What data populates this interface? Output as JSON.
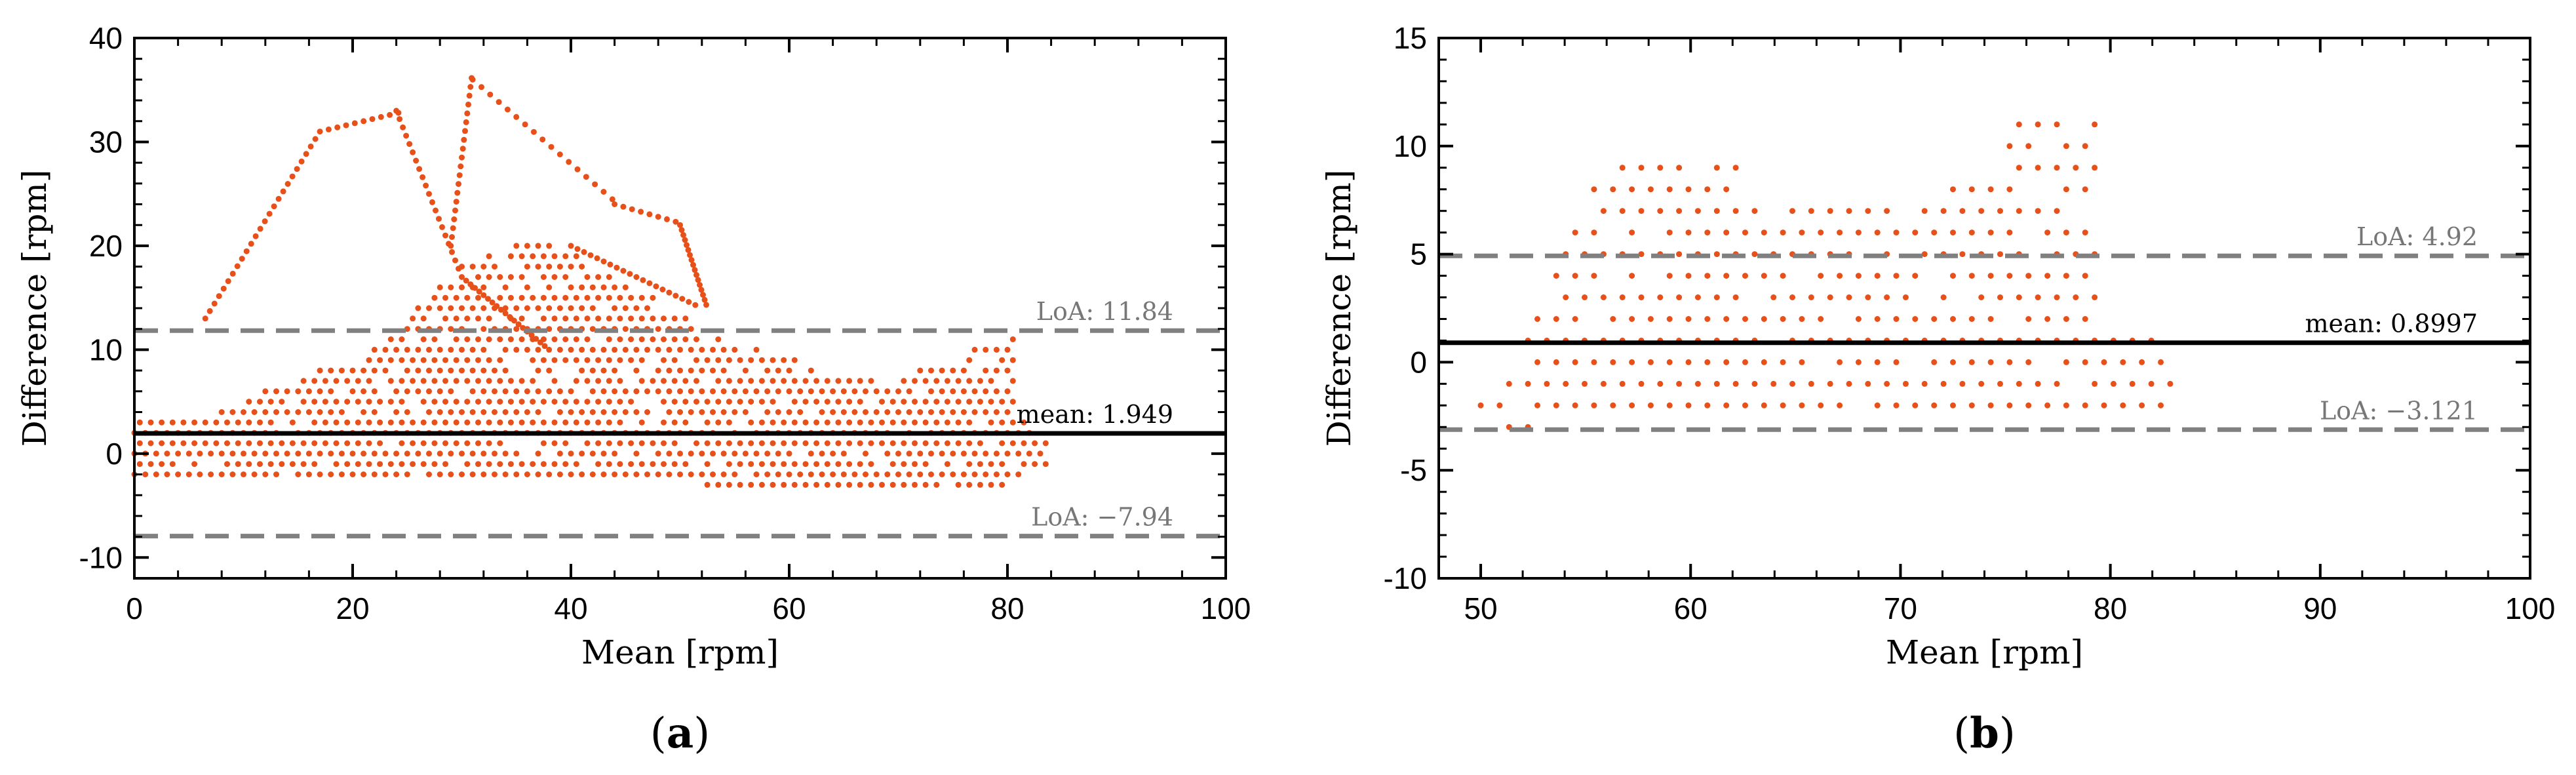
{
  "colors": {
    "points": "#e8501a",
    "mean_line": "#000000",
    "loa_line": "#808080",
    "loa_text": "#777777",
    "frame": "#000000"
  },
  "chart_data": [
    {
      "type": "scatter",
      "panel_label": "(a)",
      "panel_letter": "a",
      "xlabel": "Mean [rpm]",
      "ylabel": "Difference [rpm]",
      "xlim": [
        0,
        100
      ],
      "ylim": [
        -12,
        40
      ],
      "xticks": [
        0,
        20,
        40,
        60,
        80,
        100
      ],
      "yticks": [
        -10,
        0,
        10,
        20,
        30,
        40
      ],
      "ytick_labels": [
        "-10",
        "0",
        "10",
        "20",
        "30",
        "40"
      ],
      "mean": 1.949,
      "mean_label": "mean: 1.949",
      "loa_upper": 11.84,
      "loa_upper_label": "LoA: 11.84",
      "loa_lower": -7.94,
      "loa_lower_label": "LoA: −7.94",
      "point_density": {
        "description": "Bland-Altman scatter of integer-difference points on a ~1 rpm mean grid",
        "band_x_range": [
          0,
          83
        ],
        "band_y_range": [
          -3,
          3
        ],
        "left_arm_from": [
          6.5,
          13
        ],
        "left_arm_peak": [
          [
            17,
            31
          ],
          [
            24,
            33
          ]
        ],
        "center_peak": [
          30,
          37
        ],
        "right_arm_end": [
          52,
          14
        ],
        "right_cluster_top": [
          79,
          11
        ]
      }
    },
    {
      "type": "scatter",
      "panel_label": "(b)",
      "panel_letter": "b",
      "xlabel": "Mean [rpm]",
      "ylabel": "Difference [rpm]",
      "xlim": [
        48,
        100
      ],
      "ylim": [
        -10,
        15
      ],
      "xticks": [
        50,
        60,
        70,
        80,
        90,
        100
      ],
      "yticks": [
        -10,
        -5,
        0,
        5,
        10,
        15
      ],
      "ytick_labels": [
        "-10",
        "-5",
        "0",
        "5",
        "10",
        "15"
      ],
      "mean": 0.8997,
      "mean_label": "mean: 0.8997",
      "loa_upper": 4.92,
      "loa_upper_label": "LoA: 4.92",
      "loa_lower": -3.121,
      "loa_lower_label": "LoA: −3.121",
      "point_density": {
        "description": "Bland-Altman scatter of integer-difference points on a ~1 rpm mean grid",
        "band_x_range": [
          50,
          83
        ],
        "band_y_range": [
          -3,
          11
        ]
      }
    }
  ]
}
